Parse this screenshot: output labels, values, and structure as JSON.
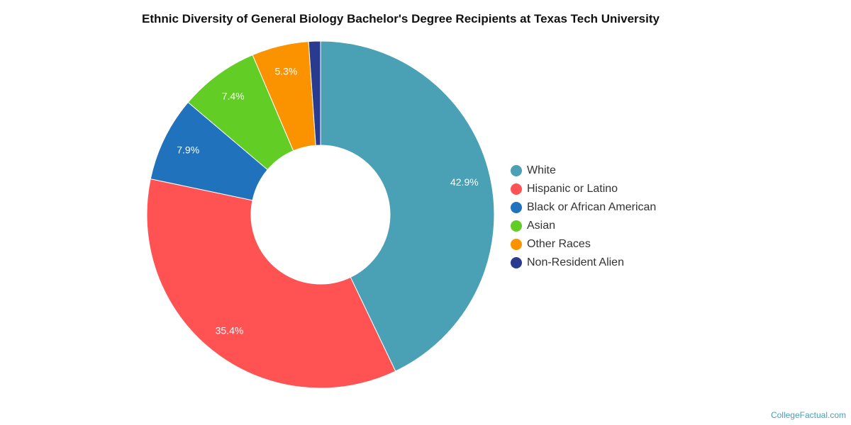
{
  "chart_data": {
    "type": "pie",
    "subtype": "donut",
    "title": "Ethnic Diversity of General Biology Bachelor's Degree Recipients at Texas Tech University",
    "categories": [
      "White",
      "Hispanic or Latino",
      "Black or African American",
      "Asian",
      "Other Races",
      "Non-Resident Alien"
    ],
    "values": [
      42.9,
      35.4,
      7.9,
      7.4,
      5.3,
      1.1
    ],
    "labels": [
      "42.9%",
      "35.4%",
      "7.9%",
      "7.4%",
      "5.3%",
      ""
    ],
    "colors": [
      "#4aa0b5",
      "#ff5252",
      "#1f72bb",
      "#62cd25",
      "#fb9300",
      "#2a3a8e"
    ],
    "legend_position": "right"
  },
  "credit": "CollegeFactual.com"
}
